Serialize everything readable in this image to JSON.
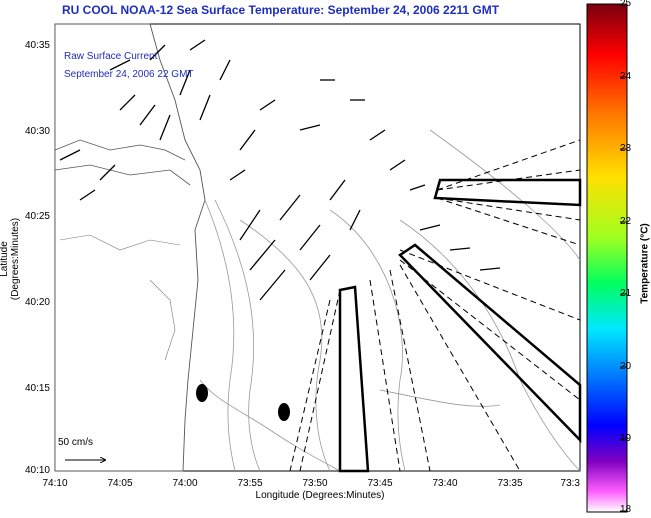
{
  "header": {
    "title": "RU COOL  NOAA-12  Sea Surface Temperature:  September 24, 2006 2211 GMT"
  },
  "overlay": {
    "legend_line1": "Raw Surface Current",
    "legend_line2": "September 24, 2006 22 GMT",
    "scale_label": "50 cm/s"
  },
  "axes": {
    "ylabel": "Latitude (Degrees:Minutes)",
    "xlabel": "Longitude (Degrees:Minutes)",
    "yticks": [
      "40:35",
      "40:30",
      "40:25",
      "40:20",
      "40:15",
      "40:10"
    ],
    "xticks": [
      "74:10",
      "74:05",
      "74:00",
      "73:55",
      "73:50",
      "73:45",
      "73:40",
      "73:35",
      "73:3"
    ]
  },
  "colorbar": {
    "label": "Temperature (°C)",
    "ticks": [
      "25",
      "24",
      "23",
      "22",
      "21",
      "20",
      "19",
      "18"
    ],
    "colors": [
      "#7a0010",
      "#ff0000",
      "#ff7a00",
      "#ffe000",
      "#a0ff20",
      "#00ff60",
      "#00e8ff",
      "#0070ff",
      "#0000ff",
      "#8000c0",
      "#ff60ff",
      "#ffffff"
    ]
  }
}
